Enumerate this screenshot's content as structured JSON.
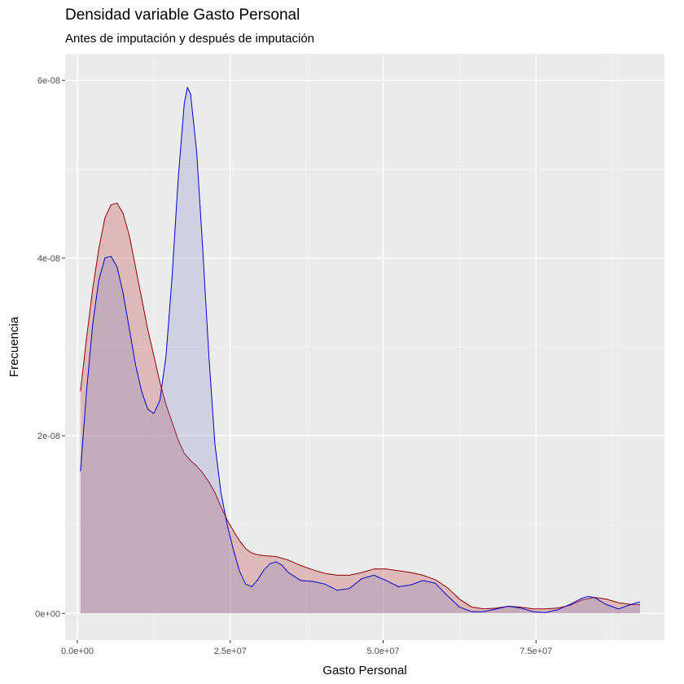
{
  "chart_data": {
    "type": "area",
    "title": "Densidad variable Gasto Personal",
    "subtitle": "Antes de imputación y después de imputación",
    "xlabel": "Gasto Personal",
    "ylabel": "Frecuencia",
    "xlim": [
      -2000000,
      96000000
    ],
    "ylim": [
      -3e-09,
      6.3e-08
    ],
    "x_ticks": [
      0,
      25000000,
      50000000,
      75000000
    ],
    "x_tick_labels": [
      "0.0e+00",
      "2.5e+07",
      "5.0e+07",
      "7.5e+07"
    ],
    "y_ticks": [
      0,
      2e-08,
      4e-08,
      6e-08
    ],
    "y_tick_labels": [
      "0e+00",
      "2e-08",
      "4e-08",
      "6e-08"
    ],
    "grid": true,
    "series": [
      {
        "color": "#8b0000",
        "fill": "#b22222",
        "x": [
          500000,
          1500000,
          2500000,
          3500000,
          4500000,
          5500000,
          6500000,
          7500000,
          8500000,
          9500000,
          10500000,
          11500000,
          12500000,
          13500000,
          14500000,
          15500000,
          16500000,
          17500000,
          18500000,
          19500000,
          20500000,
          21500000,
          22500000,
          23500000,
          24500000,
          25500000,
          26500000,
          27500000,
          28500000,
          29500000,
          30500000,
          32500000,
          34500000,
          36500000,
          38500000,
          40500000,
          42500000,
          44500000,
          46500000,
          48500000,
          50500000,
          52500000,
          54500000,
          56500000,
          58500000,
          60500000,
          62500000,
          64500000,
          66500000,
          68500000,
          70500000,
          72500000,
          74500000,
          76500000,
          78500000,
          80500000,
          82500000,
          84500000,
          86500000,
          88500000,
          90500000,
          92000000
        ],
        "y": [
          2.5e-08,
          3.1e-08,
          3.65e-08,
          4.1e-08,
          4.45e-08,
          4.6e-08,
          4.62e-08,
          4.5e-08,
          4.25e-08,
          3.9e-08,
          3.55e-08,
          3.2e-08,
          2.9e-08,
          2.6e-08,
          2.35e-08,
          2.15e-08,
          1.95e-08,
          1.8e-08,
          1.72e-08,
          1.66e-08,
          1.58e-08,
          1.48e-08,
          1.36e-08,
          1.2e-08,
          1.05e-08,
          9.3e-09,
          8.2e-09,
          7.3e-09,
          6.8e-09,
          6.6e-09,
          6.5e-09,
          6.4e-09,
          6e-09,
          5.4e-09,
          4.9e-09,
          4.5e-09,
          4.3e-09,
          4.3e-09,
          4.6e-09,
          5e-09,
          5e-09,
          4.8e-09,
          4.6e-09,
          4.3e-09,
          3.8e-09,
          2.9e-09,
          1.6e-09,
          7e-10,
          5e-10,
          6e-10,
          8e-10,
          7e-10,
          5e-10,
          5e-10,
          6e-10,
          9e-10,
          1.5e-09,
          1.8e-09,
          1.6e-09,
          1.2e-09,
          1e-09,
          1e-09
        ]
      },
      {
        "color": "#0000cd",
        "fill": "#8080c8",
        "x": [
          500000,
          1500000,
          2500000,
          3500000,
          4500000,
          5500000,
          6500000,
          7500000,
          8500000,
          9500000,
          10500000,
          11500000,
          12500000,
          13500000,
          14500000,
          15500000,
          16500000,
          17500000,
          18000000,
          18500000,
          19500000,
          20500000,
          21500000,
          22500000,
          23500000,
          24500000,
          25500000,
          26500000,
          27500000,
          28500000,
          29500000,
          30500000,
          31500000,
          32500000,
          33500000,
          34500000,
          36500000,
          38500000,
          40500000,
          42500000,
          44500000,
          46500000,
          48500000,
          50500000,
          52500000,
          54500000,
          56500000,
          58500000,
          60500000,
          62500000,
          64500000,
          66500000,
          68500000,
          70500000,
          72500000,
          74500000,
          76500000,
          78500000,
          80500000,
          82500000,
          83500000,
          84500000,
          86500000,
          88500000,
          90500000,
          92000000
        ],
        "y": [
          1.6e-08,
          2.5e-08,
          3.25e-08,
          3.75e-08,
          4e-08,
          4.02e-08,
          3.9e-08,
          3.6e-08,
          3.2e-08,
          2.8e-08,
          2.5e-08,
          2.3e-08,
          2.25e-08,
          2.4e-08,
          2.9e-08,
          3.8e-08,
          4.9e-08,
          5.75e-08,
          5.92e-08,
          5.85e-08,
          5.2e-08,
          4.1e-08,
          2.9e-08,
          1.9e-08,
          1.35e-08,
          1e-08,
          7.2e-09,
          4.8e-09,
          3.3e-09,
          3e-09,
          3.8e-09,
          4.9e-09,
          5.6e-09,
          5.8e-09,
          5.4e-09,
          4.6e-09,
          3.7e-09,
          3.6e-09,
          3.3e-09,
          2.6e-09,
          2.8e-09,
          3.9e-09,
          4.3e-09,
          3.7e-09,
          3e-09,
          3.2e-09,
          3.7e-09,
          3.4e-09,
          2e-09,
          7e-10,
          2e-10,
          2e-10,
          5e-10,
          8e-10,
          6e-10,
          2e-10,
          1e-10,
          4e-10,
          1e-09,
          1.7e-09,
          1.9e-09,
          1.8e-09,
          1e-09,
          5e-10,
          1e-09,
          1.3e-09
        ]
      }
    ]
  }
}
